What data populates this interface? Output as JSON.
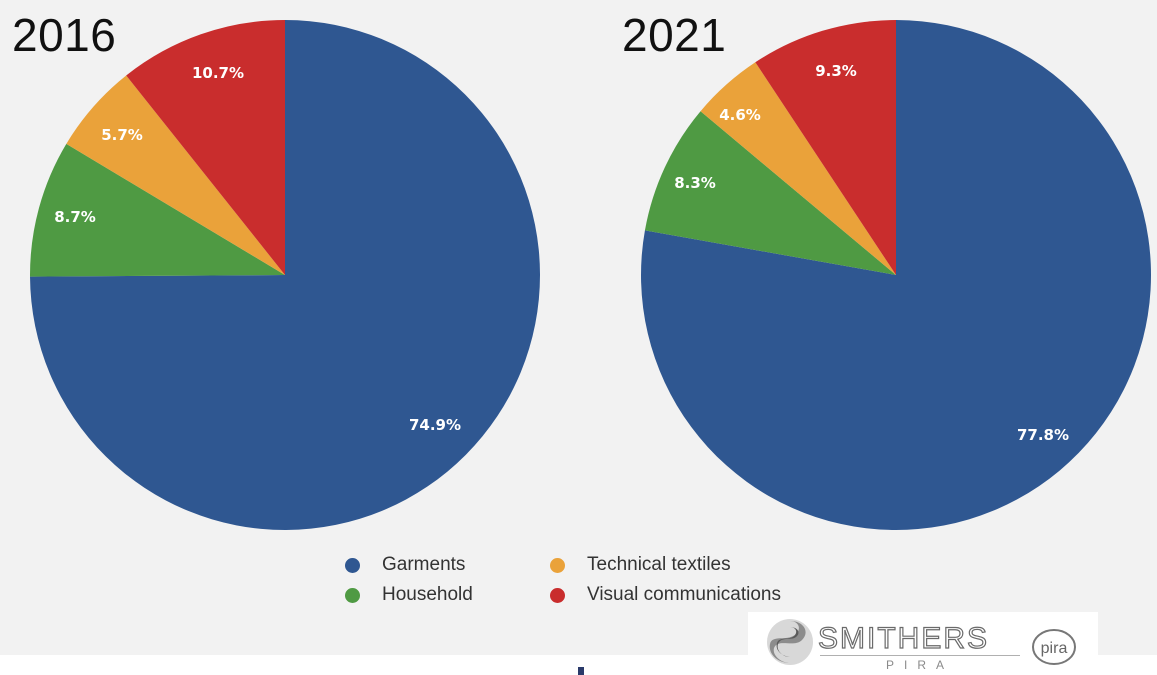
{
  "chart_data": [
    {
      "type": "pie",
      "title": "2016",
      "slices": [
        {
          "label": "Garments",
          "value": 74.9,
          "value_label": "74.9%",
          "color": "#2f5791"
        },
        {
          "label": "Household",
          "value": 8.7,
          "value_label": "8.7%",
          "color": "#4f9a43"
        },
        {
          "label": "Technical textiles",
          "value": 5.7,
          "value_label": "5.7%",
          "color": "#eaa23a"
        },
        {
          "label": "Visual communications",
          "value": 10.7,
          "value_label": "10.7%",
          "color": "#c92d2d"
        }
      ],
      "start": "12 o'clock",
      "direction": "clockwise",
      "legend": "bottom-center"
    },
    {
      "type": "pie",
      "title": "2021",
      "slices": [
        {
          "label": "Garments",
          "value": 77.8,
          "value_label": "77.8%",
          "color": "#2f5791"
        },
        {
          "label": "Household",
          "value": 8.3,
          "value_label": "8.3%",
          "color": "#4f9a43"
        },
        {
          "label": "Technical textiles",
          "value": 4.6,
          "value_label": "4.6%",
          "color": "#eaa23a"
        },
        {
          "label": "Visual communications",
          "value": 9.3,
          "value_label": "9.3%",
          "color": "#c92d2d"
        }
      ],
      "start": "12 o'clock",
      "direction": "clockwise",
      "legend": "bottom-center"
    }
  ],
  "legend": [
    {
      "label": "Garments",
      "color": "#2f5791"
    },
    {
      "label": "Technical textiles",
      "color": "#eaa23a"
    },
    {
      "label": "Household",
      "color": "#4f9a43"
    },
    {
      "label": "Visual communications",
      "color": "#c92d2d"
    }
  ],
  "logo": {
    "name": "SMITHERS",
    "sub": "PIRA",
    "badge": "pira"
  }
}
